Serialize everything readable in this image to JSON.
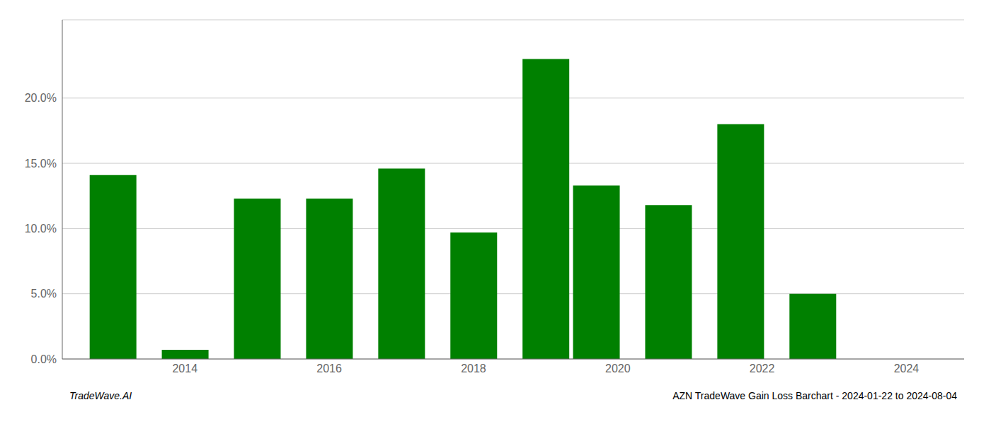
{
  "chart_data": {
    "type": "bar",
    "x": [
      2013,
      2014,
      2015,
      2016,
      2017,
      2018,
      2019,
      2019.7,
      2020.7,
      2021.7,
      2022.7,
      2023.7
    ],
    "values": [
      0.141,
      0.007,
      0.123,
      0.123,
      0.146,
      0.097,
      0.23,
      0.133,
      0.118,
      0.18,
      0.05,
      0.0
    ],
    "color": "#008000",
    "xlim": [
      2012.3,
      2024.8
    ],
    "xticks": [
      2014,
      2016,
      2018,
      2020,
      2022,
      2024
    ],
    "ylim": [
      0,
      0.26
    ],
    "yticks": [
      {
        "value": 0.0,
        "label": "0.0%"
      },
      {
        "value": 0.05,
        "label": "5.0%"
      },
      {
        "value": 0.1,
        "label": "10.0%"
      },
      {
        "value": 0.15,
        "label": "15.0%"
      },
      {
        "value": 0.2,
        "label": "20.0%"
      }
    ],
    "grid": true,
    "annotations": [
      "TradeWave.AI",
      "AZN TradeWave Gain Loss Barchart - 2024-01-22 to 2024-08-04"
    ]
  }
}
